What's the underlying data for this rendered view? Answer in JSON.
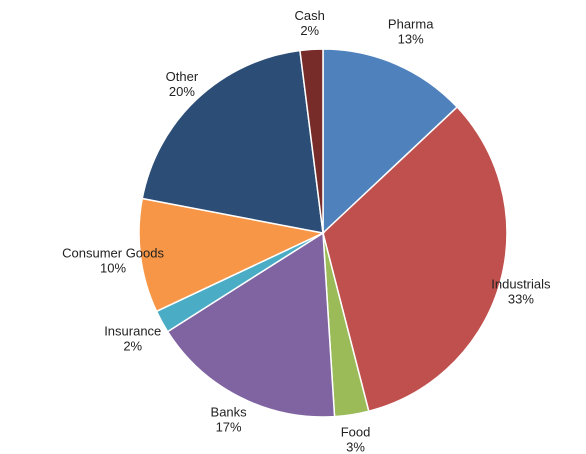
{
  "chart_data": {
    "type": "pie",
    "title": "",
    "slices": [
      {
        "label": "Pharma",
        "value": 13,
        "value_label": "13%",
        "color": "#4F81BD"
      },
      {
        "label": "Industrials",
        "value": 33,
        "value_label": "33%",
        "color": "#C0504D"
      },
      {
        "label": "Food",
        "value": 3,
        "value_label": "3%",
        "color": "#9BBB59"
      },
      {
        "label": "Banks",
        "value": 17,
        "value_label": "17%",
        "color": "#8064A2"
      },
      {
        "label": "Insurance",
        "value": 2,
        "value_label": "2%",
        "color": "#4BACC6"
      },
      {
        "label": "Consumer Goods",
        "value": 10,
        "value_label": "10%",
        "color": "#F79646"
      },
      {
        "label": "Other",
        "value": 20,
        "value_label": "20%",
        "color": "#2C4D75"
      },
      {
        "label": "Cash",
        "value": 2,
        "value_label": "2%",
        "color": "#772C2A"
      }
    ],
    "start_angle": "12 o'clock",
    "direction": "clockwise",
    "legend": "none",
    "labels": "outside"
  }
}
